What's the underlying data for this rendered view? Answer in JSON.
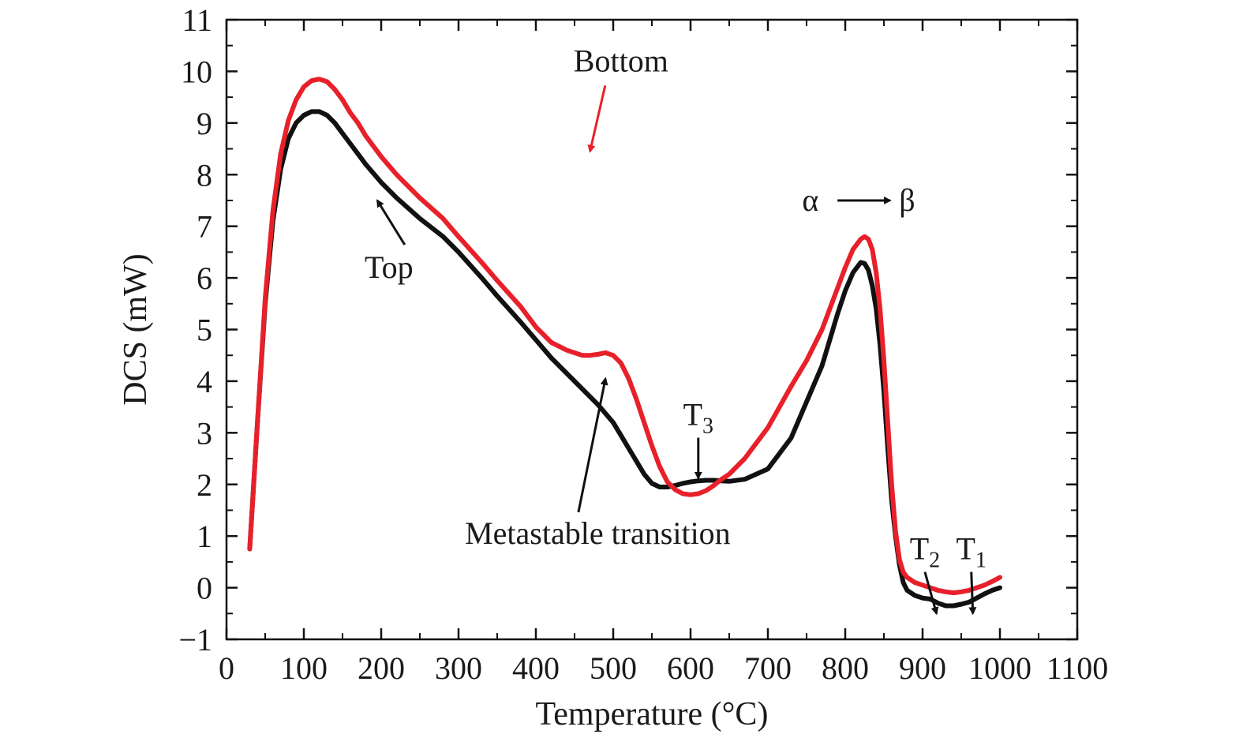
{
  "chart_data": {
    "type": "line",
    "xlabel": "Temperature (°C)",
    "ylabel": "DCS (mW)",
    "xlim": [
      0,
      1100
    ],
    "ylim": [
      -1,
      11
    ],
    "xticks": [
      0,
      100,
      200,
      300,
      400,
      500,
      600,
      700,
      800,
      900,
      1000,
      1100
    ],
    "yticks": [
      -1,
      0,
      1,
      2,
      3,
      4,
      5,
      6,
      7,
      8,
      9,
      10,
      11
    ],
    "ytick_labels": [
      "−1",
      "0",
      "1",
      "2",
      "3",
      "4",
      "5",
      "6",
      "7",
      "8",
      "9",
      "10",
      "11"
    ],
    "grid": false,
    "series": [
      {
        "name": "Bottom",
        "color": "#e8202a",
        "x": [
          30,
          40,
          50,
          60,
          70,
          80,
          90,
          100,
          110,
          120,
          130,
          140,
          150,
          160,
          170,
          180,
          200,
          220,
          250,
          280,
          300,
          330,
          350,
          380,
          400,
          420,
          440,
          460,
          470,
          480,
          490,
          500,
          510,
          520,
          530,
          540,
          550,
          560,
          570,
          580,
          590,
          600,
          610,
          620,
          630,
          640,
          650,
          670,
          700,
          730,
          750,
          770,
          780,
          790,
          800,
          810,
          820,
          825,
          830,
          835,
          840,
          845,
          850,
          855,
          860,
          865,
          870,
          875,
          880,
          890,
          900,
          910,
          920,
          930,
          940,
          950,
          960,
          970,
          980,
          990,
          1000
        ],
        "y": [
          0.75,
          3.2,
          5.6,
          7.3,
          8.4,
          9.05,
          9.45,
          9.7,
          9.82,
          9.85,
          9.8,
          9.65,
          9.45,
          9.2,
          9.0,
          8.75,
          8.35,
          8.0,
          7.55,
          7.15,
          6.8,
          6.3,
          5.95,
          5.45,
          5.05,
          4.75,
          4.6,
          4.5,
          4.5,
          4.52,
          4.55,
          4.5,
          4.35,
          4.05,
          3.65,
          3.2,
          2.75,
          2.35,
          2.05,
          1.9,
          1.82,
          1.8,
          1.82,
          1.88,
          1.98,
          2.1,
          2.2,
          2.5,
          3.1,
          3.9,
          4.4,
          5.0,
          5.4,
          5.8,
          6.2,
          6.55,
          6.75,
          6.8,
          6.75,
          6.55,
          6.1,
          5.4,
          4.4,
          3.2,
          2.0,
          1.1,
          0.55,
          0.3,
          0.2,
          0.1,
          0.05,
          0.0,
          -0.05,
          -0.08,
          -0.1,
          -0.08,
          -0.05,
          0.0,
          0.05,
          0.12,
          0.2
        ]
      },
      {
        "name": "Top",
        "color": "#111111",
        "x": [
          30,
          40,
          50,
          60,
          70,
          80,
          90,
          100,
          110,
          120,
          130,
          140,
          150,
          160,
          170,
          180,
          200,
          220,
          250,
          280,
          300,
          330,
          350,
          380,
          400,
          420,
          440,
          460,
          480,
          500,
          510,
          520,
          530,
          540,
          550,
          560,
          570,
          580,
          590,
          600,
          610,
          620,
          630,
          640,
          650,
          670,
          700,
          730,
          750,
          770,
          780,
          790,
          800,
          810,
          820,
          825,
          830,
          835,
          840,
          845,
          850,
          855,
          860,
          865,
          870,
          875,
          880,
          890,
          900,
          910,
          920,
          930,
          940,
          950,
          960,
          970,
          980,
          990,
          1000
        ],
        "y": [
          0.75,
          3.2,
          5.5,
          7.1,
          8.1,
          8.7,
          9.0,
          9.15,
          9.22,
          9.22,
          9.15,
          9.0,
          8.8,
          8.6,
          8.4,
          8.2,
          7.85,
          7.55,
          7.15,
          6.8,
          6.5,
          6.0,
          5.65,
          5.15,
          4.8,
          4.45,
          4.15,
          3.85,
          3.55,
          3.2,
          2.95,
          2.7,
          2.45,
          2.2,
          2.02,
          1.95,
          1.95,
          1.98,
          2.02,
          2.05,
          2.07,
          2.08,
          2.08,
          2.07,
          2.06,
          2.1,
          2.3,
          2.9,
          3.6,
          4.3,
          4.8,
          5.3,
          5.75,
          6.1,
          6.3,
          6.28,
          6.15,
          5.85,
          5.4,
          4.7,
          3.8,
          2.7,
          1.7,
          1.0,
          0.45,
          0.1,
          -0.05,
          -0.15,
          -0.2,
          -0.22,
          -0.3,
          -0.35,
          -0.35,
          -0.32,
          -0.28,
          -0.2,
          -0.12,
          -0.05,
          0.0
        ]
      }
    ],
    "annotations": [
      {
        "text": "Bottom",
        "x": 510,
        "y": 10.0,
        "arrow_to": [
          470,
          8.45
        ]
      },
      {
        "text": "Top",
        "x": 210,
        "y": 6.0,
        "arrow_to": [
          195,
          7.5
        ]
      },
      {
        "text": "Metastable transition",
        "x": 480,
        "y": 0.85,
        "arrow_to": [
          490,
          4.05
        ]
      },
      {
        "text": "α",
        "label": "alpha-beta",
        "x": 755,
        "y": 7.3
      },
      {
        "text": "β",
        "x": 880,
        "y": 7.3
      },
      {
        "text": "T",
        "sub": "3",
        "x": 610,
        "y": 3.15,
        "arrow_to": [
          610,
          2.12
        ]
      },
      {
        "text": "T",
        "sub": "2",
        "x": 903,
        "y": 0.55,
        "arrow_to": [
          918,
          -0.5
        ]
      },
      {
        "text": "T",
        "sub": "1",
        "x": 963,
        "y": 0.55,
        "arrow_to": [
          965,
          -0.5
        ]
      }
    ]
  }
}
